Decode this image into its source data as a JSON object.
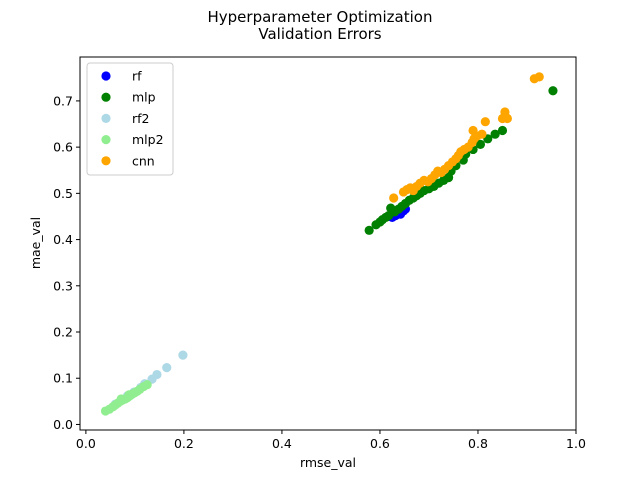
{
  "chart_data": {
    "type": "scatter",
    "title": [
      "Hyperparameter Optimization",
      "Validation Errors"
    ],
    "xlabel": "rmse_val",
    "ylabel": "mae_val",
    "xlim": [
      -0.012,
      1.0
    ],
    "ylim": [
      -0.012,
      0.795
    ],
    "xticks": [
      0.0,
      0.2,
      0.4,
      0.6,
      0.8,
      1.0
    ],
    "xtick_labels": [
      "0.0",
      "0.2",
      "0.4",
      "0.6",
      "0.8",
      "1.0"
    ],
    "yticks": [
      0.0,
      0.1,
      0.2,
      0.3,
      0.4,
      0.5,
      0.6,
      0.7
    ],
    "ytick_labels": [
      "0.0",
      "0.1",
      "0.2",
      "0.3",
      "0.4",
      "0.5",
      "0.6",
      "0.7"
    ],
    "legend_position": "upper-left",
    "series": [
      {
        "name": "rf",
        "color": "#0000ff",
        "points": [
          [
            0.625,
            0.448
          ],
          [
            0.632,
            0.452
          ],
          [
            0.638,
            0.457
          ],
          [
            0.642,
            0.455
          ],
          [
            0.648,
            0.462
          ],
          [
            0.652,
            0.466
          ]
        ]
      },
      {
        "name": "mlp",
        "color": "#008000",
        "points": [
          [
            0.578,
            0.42
          ],
          [
            0.592,
            0.432
          ],
          [
            0.6,
            0.438
          ],
          [
            0.605,
            0.443
          ],
          [
            0.612,
            0.448
          ],
          [
            0.618,
            0.452
          ],
          [
            0.622,
            0.468
          ],
          [
            0.63,
            0.46
          ],
          [
            0.638,
            0.466
          ],
          [
            0.645,
            0.472
          ],
          [
            0.652,
            0.478
          ],
          [
            0.66,
            0.485
          ],
          [
            0.668,
            0.49
          ],
          [
            0.675,
            0.495
          ],
          [
            0.682,
            0.5
          ],
          [
            0.69,
            0.506
          ],
          [
            0.7,
            0.51
          ],
          [
            0.71,
            0.515
          ],
          [
            0.72,
            0.522
          ],
          [
            0.73,
            0.528
          ],
          [
            0.74,
            0.534
          ],
          [
            0.745,
            0.548
          ],
          [
            0.755,
            0.56
          ],
          [
            0.77,
            0.572
          ],
          [
            0.775,
            0.585
          ],
          [
            0.79,
            0.595
          ],
          [
            0.805,
            0.606
          ],
          [
            0.82,
            0.618
          ],
          [
            0.835,
            0.628
          ],
          [
            0.85,
            0.636
          ],
          [
            0.953,
            0.722
          ]
        ]
      },
      {
        "name": "rf2",
        "color": "#add8e6",
        "points": [
          [
            0.198,
            0.15
          ],
          [
            0.165,
            0.123
          ],
          [
            0.145,
            0.108
          ],
          [
            0.135,
            0.098
          ],
          [
            0.12,
            0.088
          ],
          [
            0.112,
            0.08
          ],
          [
            0.098,
            0.07
          ],
          [
            0.085,
            0.062
          ],
          [
            0.072,
            0.052
          ],
          [
            0.06,
            0.044
          ]
        ]
      },
      {
        "name": "mlp2",
        "color": "#90ee90",
        "points": [
          [
            0.04,
            0.029
          ],
          [
            0.048,
            0.033
          ],
          [
            0.055,
            0.038
          ],
          [
            0.06,
            0.042
          ],
          [
            0.065,
            0.046
          ],
          [
            0.07,
            0.05
          ],
          [
            0.075,
            0.053
          ],
          [
            0.08,
            0.055
          ],
          [
            0.085,
            0.058
          ],
          [
            0.09,
            0.062
          ],
          [
            0.095,
            0.066
          ],
          [
            0.1,
            0.069
          ],
          [
            0.105,
            0.072
          ],
          [
            0.11,
            0.076
          ],
          [
            0.118,
            0.082
          ],
          [
            0.125,
            0.086
          ],
          [
            0.072,
            0.055
          ],
          [
            0.088,
            0.064
          ]
        ]
      },
      {
        "name": "cnn",
        "color": "#ffa500",
        "points": [
          [
            0.628,
            0.49
          ],
          [
            0.648,
            0.503
          ],
          [
            0.655,
            0.508
          ],
          [
            0.662,
            0.512
          ],
          [
            0.668,
            0.506
          ],
          [
            0.675,
            0.515
          ],
          [
            0.682,
            0.522
          ],
          [
            0.69,
            0.528
          ],
          [
            0.698,
            0.525
          ],
          [
            0.705,
            0.532
          ],
          [
            0.712,
            0.54
          ],
          [
            0.718,
            0.548
          ],
          [
            0.725,
            0.545
          ],
          [
            0.732,
            0.552
          ],
          [
            0.74,
            0.56
          ],
          [
            0.748,
            0.568
          ],
          [
            0.755,
            0.575
          ],
          [
            0.76,
            0.582
          ],
          [
            0.765,
            0.59
          ],
          [
            0.772,
            0.595
          ],
          [
            0.78,
            0.6
          ],
          [
            0.788,
            0.61
          ],
          [
            0.792,
            0.618
          ],
          [
            0.798,
            0.624
          ],
          [
            0.79,
            0.636
          ],
          [
            0.808,
            0.628
          ],
          [
            0.815,
            0.655
          ],
          [
            0.85,
            0.662
          ],
          [
            0.855,
            0.676
          ],
          [
            0.86,
            0.662
          ],
          [
            0.915,
            0.748
          ],
          [
            0.925,
            0.752
          ]
        ]
      }
    ]
  }
}
